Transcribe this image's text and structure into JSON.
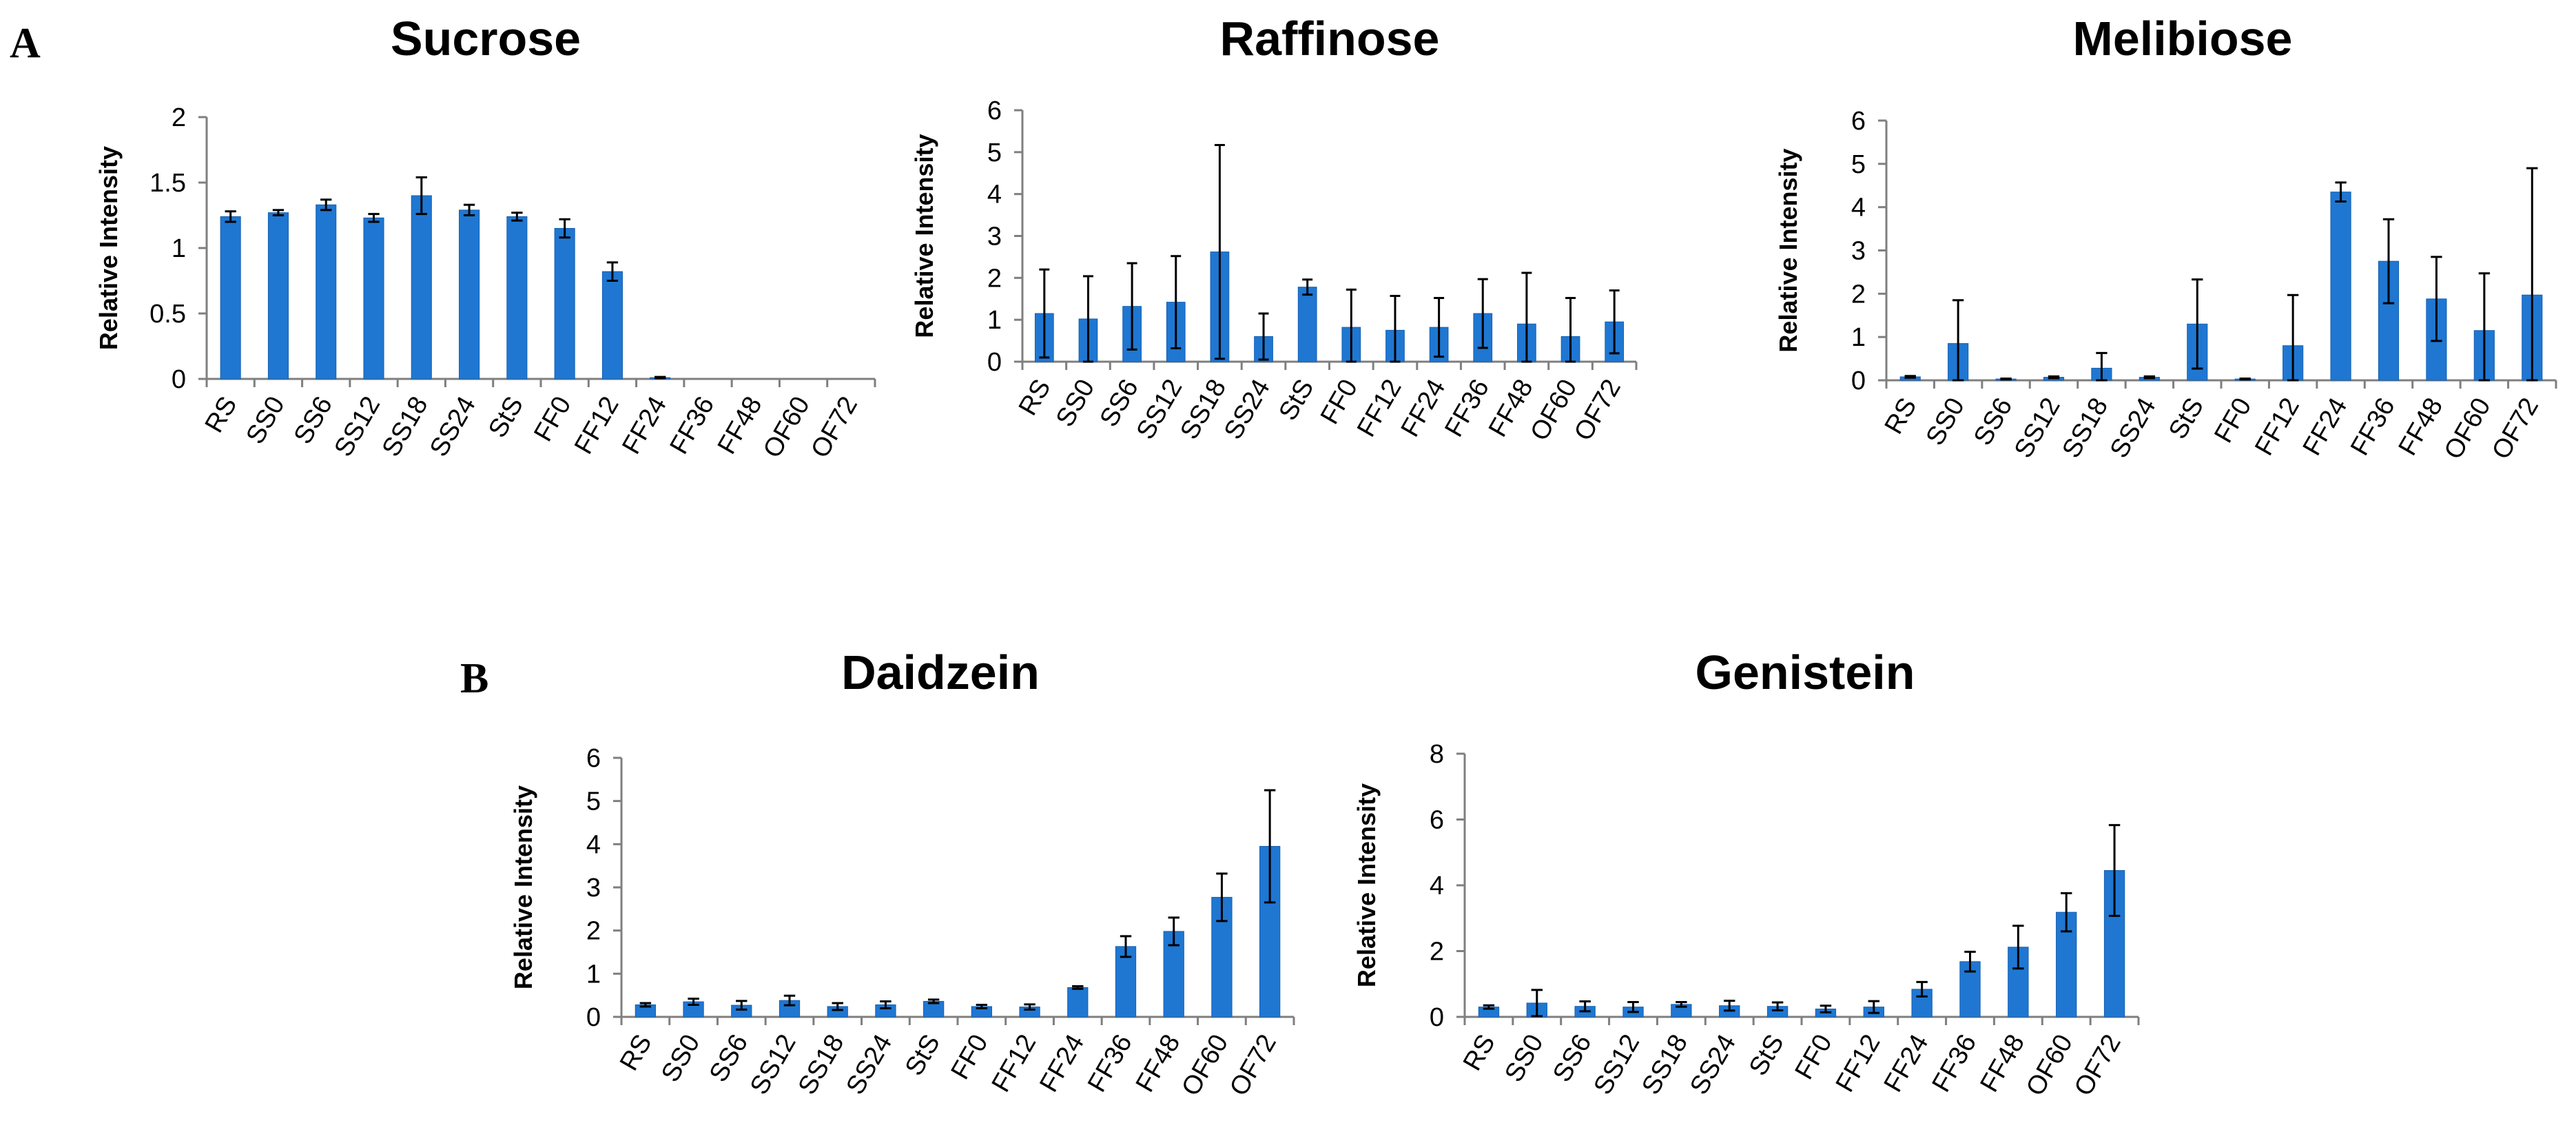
{
  "figure": {
    "panel_a_label": "A",
    "panel_b_label": "B"
  },
  "colors": {
    "bar": "#1f77d2",
    "bar_edge": "#1660b0",
    "axis": "#7f7f7f",
    "error": "#000000",
    "text": "#000000"
  },
  "chart_data": [
    {
      "type": "bar",
      "title": "Sucrose",
      "xlabel": "",
      "ylabel": "Relative Intensity",
      "ylim": [
        0,
        2
      ],
      "yticks": [
        0,
        0.5,
        1,
        1.5,
        2
      ],
      "ytick_labels": [
        "0",
        "0.5",
        "1",
        "1.5",
        "2"
      ],
      "categories": [
        "RS",
        "SS0",
        "SS6",
        "SS12",
        "SS18",
        "SS24",
        "StS",
        "FF0",
        "FF12",
        "FF24",
        "FF36",
        "FF48",
        "OF60",
        "OF72"
      ],
      "values": [
        1.24,
        1.27,
        1.33,
        1.23,
        1.4,
        1.29,
        1.24,
        1.15,
        0.82,
        0.01,
        0,
        0,
        0,
        0
      ],
      "errors": [
        0.04,
        0.02,
        0.04,
        0.03,
        0.14,
        0.04,
        0.03,
        0.07,
        0.07,
        0.005,
        0,
        0,
        0,
        0
      ],
      "grid": false
    },
    {
      "type": "bar",
      "title": "Raffinose",
      "xlabel": "",
      "ylabel": "Relative Intensity",
      "ylim": [
        0,
        6
      ],
      "yticks": [
        0,
        1,
        2,
        3,
        4,
        5,
        6
      ],
      "ytick_labels": [
        "0",
        "1",
        "2",
        "3",
        "4",
        "5",
        "6"
      ],
      "categories": [
        "RS",
        "SS0",
        "SS6",
        "SS12",
        "SS18",
        "SS24",
        "StS",
        "FF0",
        "FF12",
        "FF24",
        "FF36",
        "FF48",
        "OF60",
        "OF72"
      ],
      "values": [
        1.15,
        1.02,
        1.32,
        1.42,
        2.62,
        0.6,
        1.78,
        0.82,
        0.75,
        0.82,
        1.15,
        0.9,
        0.6,
        0.95
      ],
      "errors": [
        1.05,
        1.02,
        1.03,
        1.1,
        2.55,
        0.55,
        0.18,
        0.9,
        0.82,
        0.7,
        0.82,
        1.22,
        0.92,
        0.75
      ],
      "grid": false
    },
    {
      "type": "bar",
      "title": "Melibiose",
      "xlabel": "",
      "ylabel": "Relative Intensity",
      "ylim": [
        0,
        6
      ],
      "yticks": [
        0,
        1,
        2,
        3,
        4,
        5,
        6
      ],
      "ytick_labels": [
        "0",
        "1",
        "2",
        "3",
        "4",
        "5",
        "6"
      ],
      "categories": [
        "RS",
        "SS0",
        "SS6",
        "SS12",
        "SS18",
        "SS24",
        "StS",
        "FF0",
        "FF12",
        "FF24",
        "FF36",
        "FF48",
        "OF60",
        "OF72"
      ],
      "values": [
        0.08,
        0.85,
        0.03,
        0.07,
        0.28,
        0.07,
        1.3,
        0.03,
        0.8,
        4.35,
        2.75,
        1.88,
        1.15,
        1.97
      ],
      "errors": [
        0.02,
        1.0,
        0.01,
        0.02,
        0.35,
        0.02,
        1.03,
        0.01,
        1.17,
        0.22,
        0.97,
        0.97,
        1.32,
        2.93
      ],
      "grid": false
    },
    {
      "type": "bar",
      "title": "Daidzein",
      "xlabel": "",
      "ylabel": "Relative Intensity",
      "ylim": [
        0,
        6
      ],
      "yticks": [
        0,
        1,
        2,
        3,
        4,
        5,
        6
      ],
      "ytick_labels": [
        "0",
        "1",
        "2",
        "3",
        "4",
        "5",
        "6"
      ],
      "categories": [
        "RS",
        "SS0",
        "SS6",
        "SS12",
        "SS18",
        "SS24",
        "StS",
        "FF0",
        "FF12",
        "FF24",
        "FF36",
        "FF48",
        "OF60",
        "OF72"
      ],
      "values": [
        0.28,
        0.35,
        0.27,
        0.38,
        0.24,
        0.28,
        0.36,
        0.24,
        0.23,
        0.68,
        1.63,
        1.98,
        2.77,
        3.95
      ],
      "errors": [
        0.04,
        0.07,
        0.1,
        0.11,
        0.08,
        0.08,
        0.04,
        0.04,
        0.06,
        0.03,
        0.24,
        0.32,
        0.55,
        1.3
      ],
      "grid": false
    },
    {
      "type": "bar",
      "title": "Genistein",
      "xlabel": "",
      "ylabel": "Relative Intensity",
      "ylim": [
        0,
        8
      ],
      "yticks": [
        0,
        2,
        4,
        6,
        8
      ],
      "ytick_labels": [
        "0",
        "2",
        "4",
        "6",
        "8"
      ],
      "categories": [
        "RS",
        "SS0",
        "SS6",
        "SS12",
        "SS18",
        "SS24",
        "StS",
        "FF0",
        "FF12",
        "FF24",
        "FF36",
        "FF48",
        "OF60",
        "OF72"
      ],
      "values": [
        0.3,
        0.42,
        0.32,
        0.3,
        0.38,
        0.34,
        0.32,
        0.24,
        0.3,
        0.84,
        1.68,
        2.12,
        3.18,
        4.45
      ],
      "errors": [
        0.05,
        0.4,
        0.15,
        0.15,
        0.07,
        0.15,
        0.12,
        0.1,
        0.18,
        0.22,
        0.3,
        0.65,
        0.58,
        1.38
      ],
      "grid": false
    }
  ]
}
